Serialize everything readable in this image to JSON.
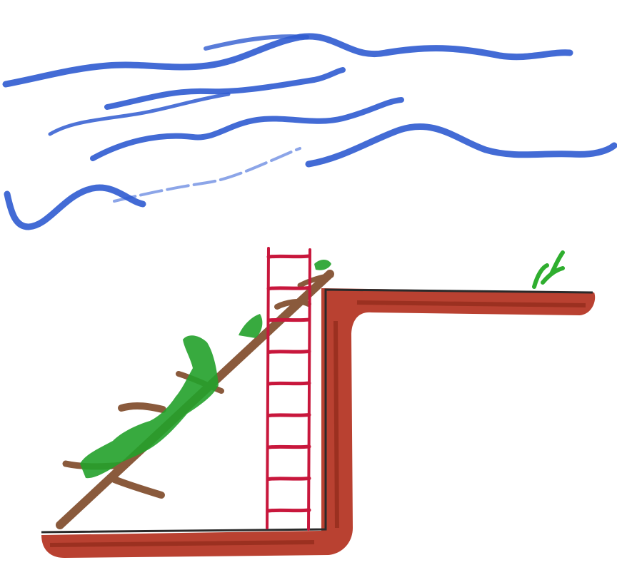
{
  "scene": {
    "description_text": "",
    "colors": {
      "wind": "#2f5bd0",
      "wind_light": "#7f9be6",
      "soil": "#b3311f",
      "soil_dark": "#8f2a1a",
      "ground_line": "#2a2a2a",
      "ladder": "#c8173c",
      "trunk": "#8a5a3c",
      "foliage": "#22a12a",
      "grass": "#2fae2f"
    },
    "elements": {
      "wind_lines": 8,
      "ladder_rungs": 9
    }
  }
}
